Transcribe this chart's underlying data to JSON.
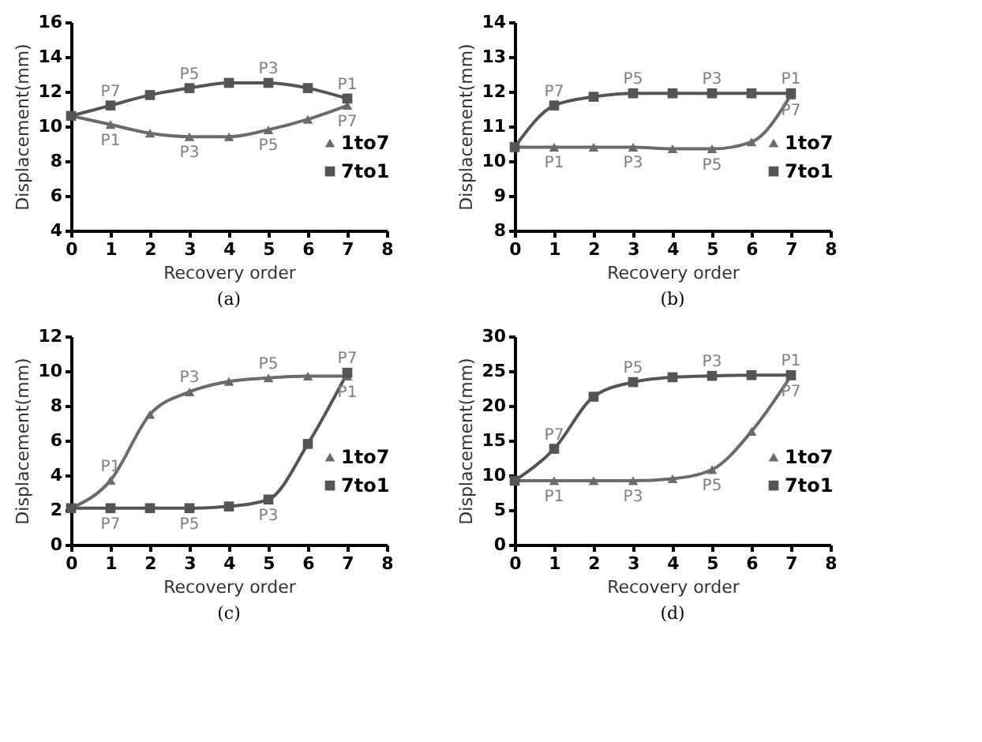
{
  "chart_data": [
    {
      "type": "line",
      "x": [
        0,
        1,
        2,
        3,
        4,
        5,
        6,
        7
      ],
      "xlabel": "Recovery order",
      "ylabel": "Displacement(mm)",
      "xlim": [
        0,
        8
      ],
      "xticks": [
        0,
        1,
        2,
        3,
        4,
        5,
        6,
        7,
        8
      ],
      "ylim": [
        4,
        16
      ],
      "yticks": [
        4,
        6,
        8,
        10,
        12,
        14,
        16
      ],
      "grid": false,
      "legend": "right",
      "line_style": "solid",
      "series": [
        {
          "name": "1to7",
          "color": "#6b6b6b",
          "marker": "triangle",
          "values": [
            10.6,
            10.1,
            9.6,
            9.4,
            9.4,
            9.8,
            10.4,
            11.2
          ]
        },
        {
          "name": "7to1",
          "color": "#555555",
          "marker": "square",
          "values": [
            10.6,
            11.2,
            11.8,
            12.2,
            12.5,
            12.5,
            12.2,
            11.6
          ]
        }
      ],
      "annotations": [
        {
          "text": "P1",
          "x": 1,
          "y": 10.1
        },
        {
          "text": "P3",
          "x": 3,
          "y": 9.4
        },
        {
          "text": "P5",
          "x": 5,
          "y": 9.8
        },
        {
          "text": "P7",
          "x": 7,
          "y": 11.2
        },
        {
          "text": "P7",
          "x": 1,
          "y": 11.2
        },
        {
          "text": "P5",
          "x": 3,
          "y": 12.2
        },
        {
          "text": "P3",
          "x": 5,
          "y": 12.5
        },
        {
          "text": "P1",
          "x": 7,
          "y": 11.6
        },
        "(a)"
      ]
    },
    {
      "type": "line",
      "x": [
        0,
        1,
        2,
        3,
        4,
        5,
        6,
        7
      ],
      "xlabel": "Recovery order",
      "ylabel": "Displacement(mm)",
      "xlim": [
        0,
        8
      ],
      "xticks": [
        0,
        1,
        2,
        3,
        4,
        5,
        6,
        7,
        8
      ],
      "ylim": [
        8,
        14
      ],
      "yticks": [
        8,
        9,
        10,
        11,
        12,
        13,
        14
      ],
      "grid": false,
      "legend": "right",
      "line_style": "solid",
      "series": [
        {
          "name": "1to7",
          "color": "#6b6b6b",
          "marker": "triangle",
          "values": [
            10.4,
            10.4,
            10.4,
            10.4,
            10.35,
            10.35,
            10.55,
            11.9
          ]
        },
        {
          "name": "7to1",
          "color": "#555555",
          "marker": "square",
          "values": [
            10.4,
            11.6,
            11.85,
            11.95,
            11.95,
            11.95,
            11.95,
            11.95
          ]
        }
      ],
      "annotations": [
        {
          "text": "P1",
          "x": 1,
          "y": 10.4
        },
        {
          "text": "P3",
          "x": 3,
          "y": 10.4
        },
        {
          "text": "P5",
          "x": 5,
          "y": 10.35
        },
        {
          "text": "P7",
          "x": 7,
          "y": 11.9
        },
        {
          "text": "P7",
          "x": 1,
          "y": 11.6
        },
        {
          "text": "P5",
          "x": 3,
          "y": 11.95
        },
        {
          "text": "P3",
          "x": 5,
          "y": 11.95
        },
        {
          "text": "P1",
          "x": 7,
          "y": 11.95
        },
        "(b)"
      ]
    },
    {
      "type": "line",
      "x": [
        0,
        1,
        2,
        3,
        4,
        5,
        6,
        7
      ],
      "xlabel": "Recovery order",
      "ylabel": "Displacement(mm)",
      "xlim": [
        0,
        8
      ],
      "xticks": [
        0,
        1,
        2,
        3,
        4,
        5,
        6,
        7,
        8
      ],
      "ylim": [
        0,
        12
      ],
      "yticks": [
        0,
        2,
        4,
        6,
        8,
        10,
        12
      ],
      "grid": false,
      "legend": "right",
      "line_style": "solid",
      "series": [
        {
          "name": "1to7",
          "color": "#6b6b6b",
          "marker": "triangle",
          "values": [
            2.1,
            3.7,
            7.5,
            8.8,
            9.4,
            9.6,
            9.7,
            9.7
          ]
        },
        {
          "name": "7to1",
          "color": "#555555",
          "marker": "square",
          "values": [
            2.1,
            2.1,
            2.1,
            2.1,
            2.2,
            2.6,
            5.8,
            9.9
          ]
        }
      ],
      "annotations": [
        {
          "text": "P1",
          "x": 1,
          "y": 3.7
        },
        {
          "text": "P3",
          "x": 3,
          "y": 8.8
        },
        {
          "text": "P5",
          "x": 5,
          "y": 9.6
        },
        {
          "text": "P1",
          "x": 7,
          "y": 9.7
        },
        {
          "text": "P7",
          "x": 1,
          "y": 2.1
        },
        {
          "text": "P5",
          "x": 3,
          "y": 2.1
        },
        {
          "text": "P3",
          "x": 5,
          "y": 2.6
        },
        {
          "text": "P7",
          "x": 7,
          "y": 9.9
        },
        "(c)"
      ]
    },
    {
      "type": "line",
      "x": [
        0,
        1,
        2,
        3,
        4,
        5,
        6,
        7
      ],
      "xlabel": "Recovery order",
      "ylabel": "Displacement(mm)",
      "xlim": [
        0,
        8
      ],
      "xticks": [
        0,
        1,
        2,
        3,
        4,
        5,
        6,
        7,
        8
      ],
      "ylim": [
        0,
        30
      ],
      "yticks": [
        0,
        5,
        10,
        15,
        20,
        25,
        30
      ],
      "grid": false,
      "legend": "right",
      "line_style": "solid",
      "series": [
        {
          "name": "1to7",
          "color": "#6b6b6b",
          "marker": "triangle",
          "values": [
            9.2,
            9.2,
            9.2,
            9.2,
            9.5,
            10.8,
            16.3,
            24.3
          ]
        },
        {
          "name": "7to1",
          "color": "#555555",
          "marker": "square",
          "values": [
            9.2,
            13.8,
            21.3,
            23.4,
            24.1,
            24.3,
            24.4,
            24.4
          ]
        }
      ],
      "annotations": [
        {
          "text": "P1",
          "x": 1,
          "y": 9.2
        },
        {
          "text": "P3",
          "x": 3,
          "y": 9.2
        },
        {
          "text": "P5",
          "x": 5,
          "y": 10.8
        },
        {
          "text": "P7",
          "x": 7,
          "y": 24.3
        },
        {
          "text": "P7",
          "x": 1,
          "y": 13.8
        },
        {
          "text": "P5",
          "x": 3,
          "y": 23.4
        },
        {
          "text": "P3",
          "x": 5,
          "y": 24.3
        },
        {
          "text": "P1",
          "x": 7,
          "y": 24.4
        },
        "(d)"
      ]
    }
  ]
}
